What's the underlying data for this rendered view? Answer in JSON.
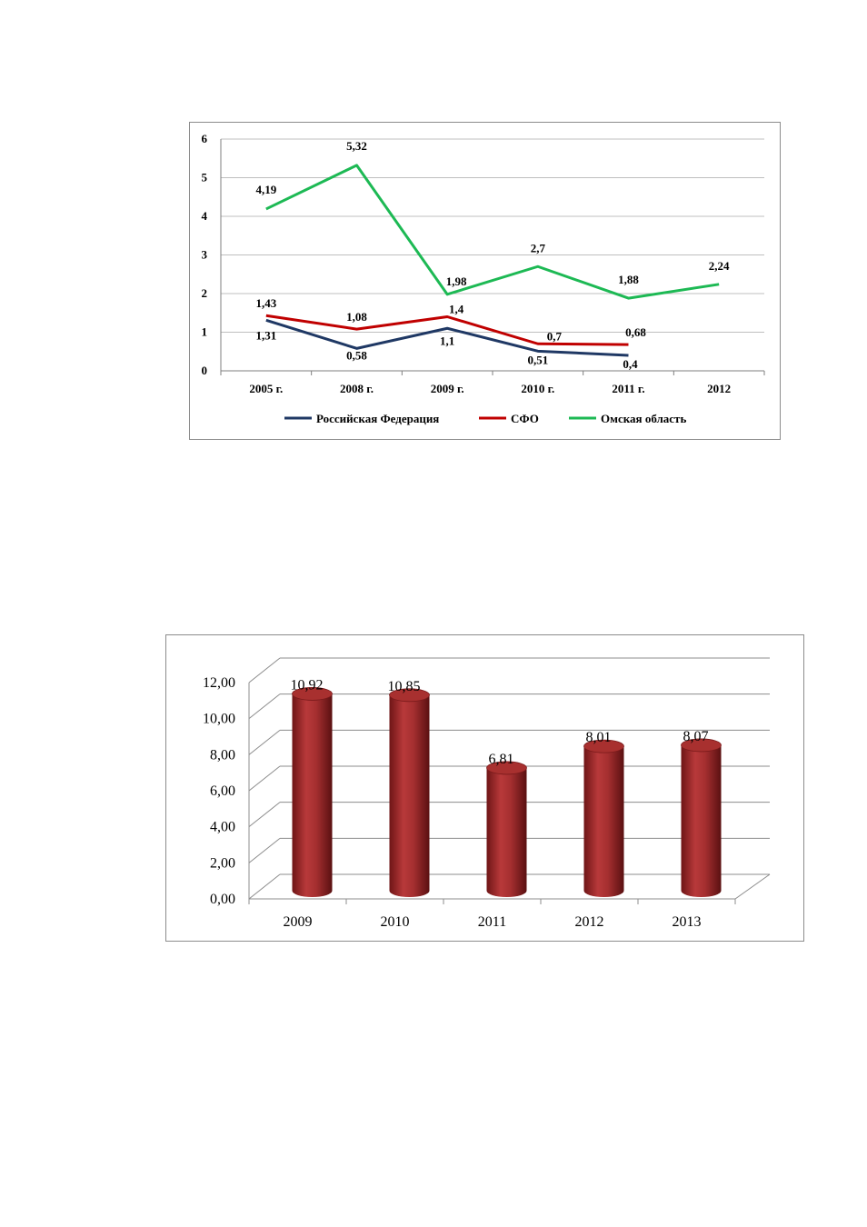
{
  "chart_data": [
    {
      "type": "line",
      "categories": [
        "2005 г.",
        "2008 г.",
        "2009 г.",
        "2010 г.",
        "2011 г.",
        "2012"
      ],
      "yticks": [
        "0",
        "1",
        "2",
        "3",
        "4",
        "5",
        "6"
      ],
      "ylim": [
        0,
        6
      ],
      "grid": true,
      "legend_position": "bottom",
      "series": [
        {
          "name": "Российская Федерация",
          "color": "#1f3864",
          "values": [
            1.31,
            0.58,
            1.1,
            0.51,
            0.4,
            null
          ],
          "labels": [
            "1,31",
            "0,58",
            "1,1",
            "0,51",
            "0,4",
            ""
          ]
        },
        {
          "name": "СФО",
          "color": "#c00000",
          "values": [
            1.43,
            1.08,
            1.4,
            0.7,
            0.68,
            null
          ],
          "labels": [
            "1,43",
            "1,08",
            "1,4",
            "0,7",
            "0,68",
            ""
          ]
        },
        {
          "name": "Омская область",
          "color": "#1db954",
          "values": [
            4.19,
            5.32,
            1.98,
            2.7,
            1.88,
            2.24
          ],
          "labels": [
            "4,19",
            "5,32",
            "1,98",
            "2,7",
            "1,88",
            "2,24"
          ]
        }
      ]
    },
    {
      "type": "bar",
      "style": "3d-cylinder",
      "categories": [
        "2009",
        "2010",
        "2011",
        "2012",
        "2013"
      ],
      "values": [
        10.92,
        10.85,
        6.81,
        8.01,
        8.07
      ],
      "labels": [
        "10,92",
        "10,85",
        "6,81",
        "8,01",
        "8,07"
      ],
      "yticks": [
        "0,00",
        "2,00",
        "4,00",
        "6,00",
        "8,00",
        "10,00",
        "12,00"
      ],
      "ylim": [
        0,
        12
      ],
      "grid": true,
      "color": "#9e2a2b"
    }
  ]
}
